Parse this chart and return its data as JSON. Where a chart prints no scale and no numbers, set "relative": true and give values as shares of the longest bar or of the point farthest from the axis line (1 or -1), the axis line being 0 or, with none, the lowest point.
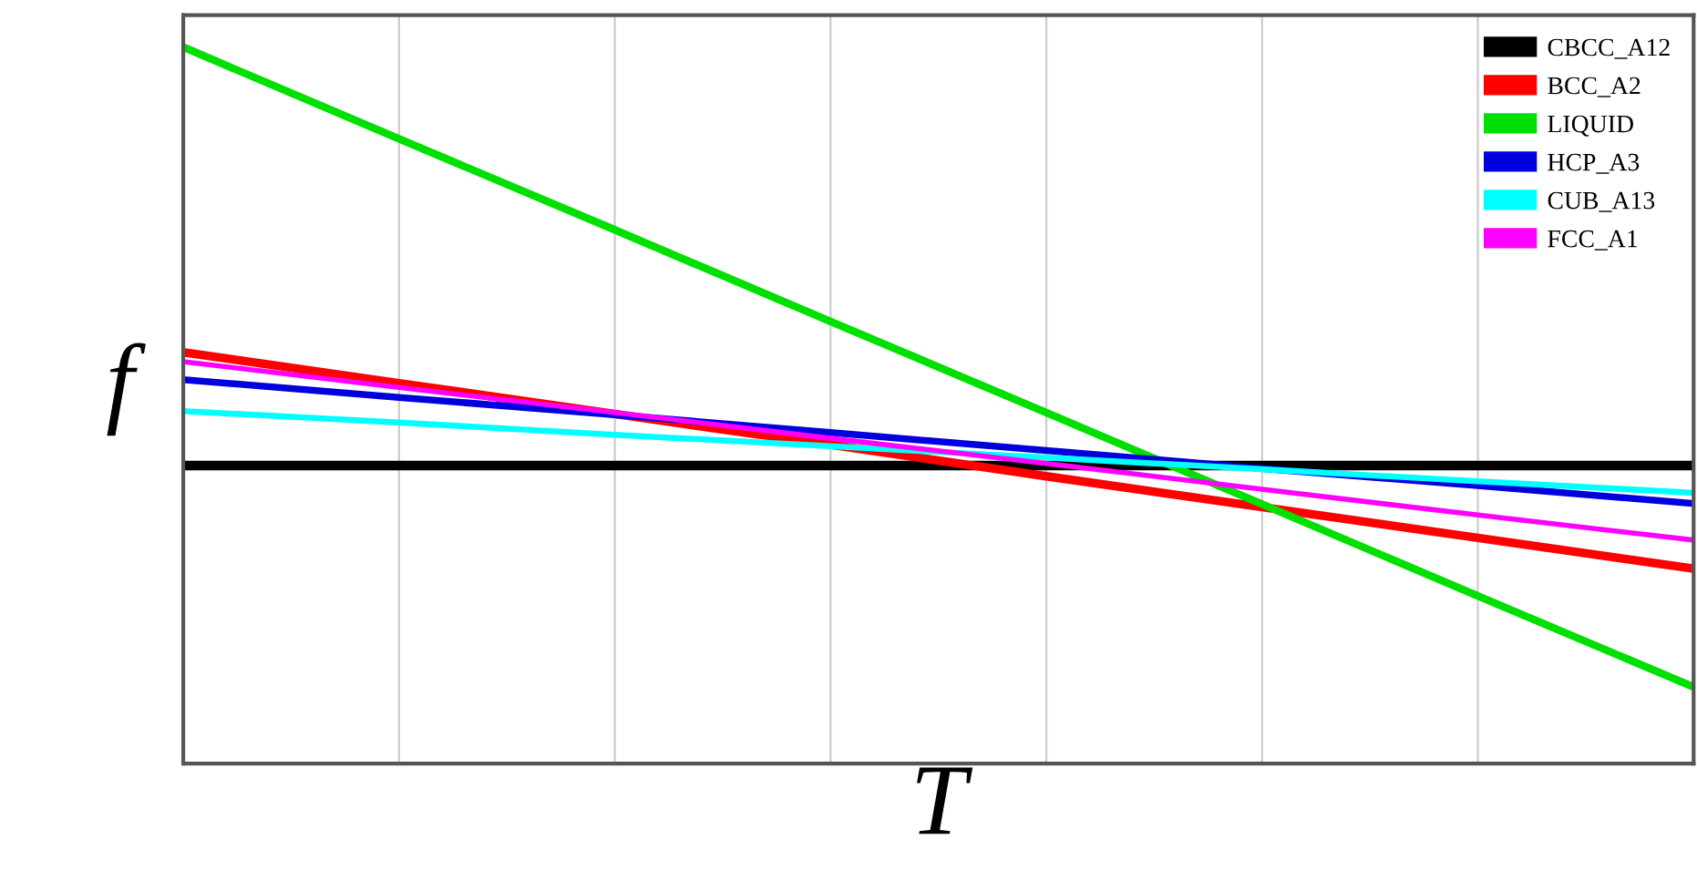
{
  "chart_data": {
    "type": "line",
    "relative": true,
    "xlabel": "T",
    "ylabel": "f",
    "categories": [
      null,
      null,
      null,
      null,
      null,
      null,
      null,
      null
    ],
    "series": [
      {
        "name": "CBCC_A12",
        "color": "#000000",
        "values": [
          0.416,
          0.416,
          0.416,
          0.416,
          0.416,
          0.416,
          0.416,
          0.416
        ]
      },
      {
        "name": "BCC_A2",
        "color": "#ff0000",
        "values": [
          0.574,
          0.531,
          0.488,
          0.445,
          0.401,
          0.358,
          0.315,
          0.272
        ]
      },
      {
        "name": "LIQUID",
        "color": "#00e000",
        "values": [
          1,
          0.872,
          0.745,
          0.617,
          0.49,
          0.362,
          0.234,
          0.107
        ]
      },
      {
        "name": "HCP_A3",
        "color": "#0000dd",
        "values": [
          0.536,
          0.511,
          0.487,
          0.462,
          0.437,
          0.412,
          0.388,
          0.363
        ]
      },
      {
        "name": "CUB_A13",
        "color": "#00ffff",
        "values": [
          0.492,
          0.476,
          0.459,
          0.443,
          0.427,
          0.411,
          0.394,
          0.378
        ]
      },
      {
        "name": "FCC_A1",
        "color": "#ff00ff",
        "values": [
          0.561,
          0.525,
          0.49,
          0.454,
          0.419,
          0.383,
          0.347,
          0.312
        ]
      }
    ],
    "grid": "x",
    "legend": "top right",
    "line_style": "solid",
    "marker": "none"
  }
}
